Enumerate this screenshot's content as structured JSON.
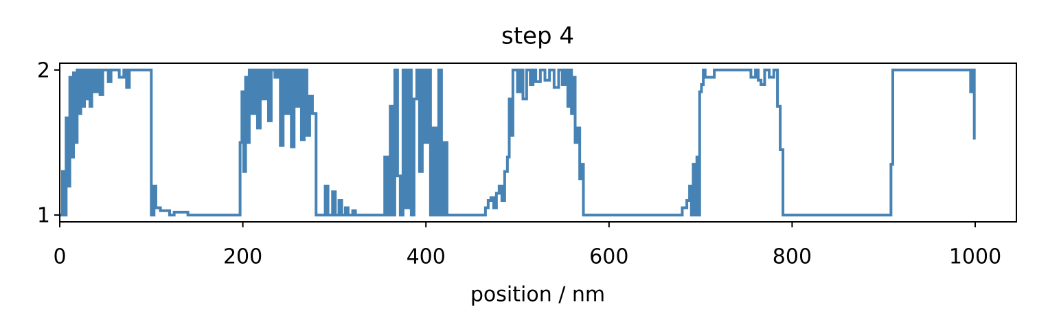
{
  "chart_data": {
    "type": "line",
    "title": "step 4",
    "x_label": "position / nm",
    "drawstyle": "steps-post",
    "xlim": [
      0,
      1045
    ],
    "ylim": [
      0.953,
      2.047
    ],
    "xticks": [
      0,
      200,
      400,
      600,
      800,
      1000
    ],
    "yticks": [
      1,
      2
    ],
    "series": [
      {
        "color": "#4682b4",
        "x": [
          0,
          3,
          5,
          7,
          9,
          11,
          13,
          15,
          17,
          19,
          21,
          23,
          25,
          27,
          29,
          31,
          33,
          35,
          38,
          41,
          44,
          47,
          50,
          53,
          56,
          60,
          65,
          70,
          73,
          76,
          100,
          103,
          105,
          110,
          115,
          120,
          125,
          140,
          197,
          199,
          201,
          203,
          205,
          207,
          210,
          213,
          216,
          219,
          222,
          225,
          228,
          231,
          235,
          238,
          241,
          244,
          247,
          250,
          253,
          256,
          259,
          262,
          264,
          267,
          270,
          273,
          276,
          280,
          290,
          293,
          298,
          301,
          305,
          308,
          312,
          315,
          320,
          323,
          330,
          355,
          358,
          361,
          364,
          366,
          369,
          372,
          375,
          378,
          381,
          384,
          387,
          390,
          393,
          396,
          399,
          402,
          405,
          408,
          411,
          414,
          417,
          420,
          423,
          465,
          468,
          471,
          474,
          477,
          480,
          483,
          486,
          489,
          491,
          493,
          495,
          500,
          503,
          506,
          510,
          514,
          517,
          520,
          525,
          530,
          535,
          540,
          545,
          549,
          552,
          555,
          557,
          559,
          561,
          563,
          566,
          568,
          570,
          572,
          680,
          685,
          688,
          690,
          692,
          694,
          696,
          698,
          699,
          701,
          703,
          705,
          715,
          750,
          755,
          760,
          763,
          766,
          770,
          775,
          780,
          784,
          787,
          790,
          908,
          910,
          995,
          997,
          999
        ],
        "values": [
          1.0,
          1.3,
          1.0,
          1.67,
          1.2,
          1.95,
          1.4,
          1.98,
          1.5,
          2.0,
          1.7,
          2.0,
          1.75,
          2.0,
          1.8,
          2.0,
          1.75,
          2.0,
          1.85,
          2.0,
          1.83,
          2.0,
          2.0,
          1.92,
          2.0,
          2.0,
          1.95,
          2.0,
          1.88,
          2.0,
          1.0,
          1.2,
          1.05,
          1.03,
          1.03,
          1.0,
          1.02,
          1.0,
          1.5,
          1.85,
          1.3,
          1.95,
          1.5,
          2.0,
          1.7,
          2.0,
          1.6,
          2.0,
          1.8,
          2.0,
          1.65,
          2.0,
          1.95,
          2.0,
          1.48,
          2.0,
          1.7,
          2.0,
          1.47,
          2.0,
          1.75,
          2.0,
          1.52,
          2.0,
          1.55,
          1.82,
          1.7,
          1.0,
          1.2,
          1.0,
          1.16,
          1.0,
          1.1,
          1.0,
          1.05,
          1.0,
          1.03,
          1.0,
          1.0,
          1.4,
          1.0,
          1.75,
          1.0,
          2.0,
          1.27,
          1.0,
          2.0,
          1.05,
          2.0,
          1.0,
          1.8,
          2.0,
          1.3,
          2.0,
          1.5,
          2.0,
          1.0,
          1.6,
          1.0,
          2.0,
          1.0,
          1.5,
          1.0,
          1.05,
          1.1,
          1.12,
          1.05,
          1.15,
          1.2,
          1.1,
          1.3,
          1.4,
          1.8,
          1.55,
          2.0,
          1.85,
          2.0,
          1.8,
          2.0,
          1.9,
          2.0,
          1.92,
          2.0,
          1.93,
          2.0,
          1.88,
          2.0,
          1.9,
          2.0,
          1.75,
          2.0,
          1.7,
          1.95,
          1.5,
          1.6,
          1.25,
          1.35,
          1.0,
          1.05,
          1.1,
          1.2,
          1.0,
          1.35,
          1.0,
          1.4,
          1.0,
          1.85,
          1.9,
          2.0,
          1.95,
          2.0,
          2.0,
          1.95,
          2.0,
          1.93,
          1.9,
          2.0,
          1.95,
          2.0,
          1.75,
          1.45,
          1.0,
          1.35,
          2.0,
          1.85,
          2.0,
          1.52
        ]
      }
    ]
  }
}
